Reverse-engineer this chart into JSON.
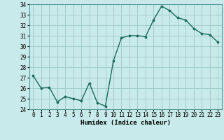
{
  "x": [
    0,
    1,
    2,
    3,
    4,
    5,
    6,
    7,
    8,
    9,
    10,
    11,
    12,
    13,
    14,
    15,
    16,
    17,
    18,
    19,
    20,
    21,
    22,
    23
  ],
  "y": [
    27.2,
    26.0,
    26.1,
    24.7,
    25.2,
    25.0,
    24.8,
    26.5,
    24.6,
    24.3,
    28.6,
    30.8,
    31.0,
    31.0,
    30.9,
    32.5,
    33.8,
    33.4,
    32.7,
    32.5,
    31.7,
    31.2,
    31.1,
    30.4
  ],
  "line_color": "#1a6b5a",
  "marker": "o",
  "marker_size": 2.2,
  "bg_color": "#c8eaea",
  "grid_color": "#a0c8c8",
  "xlabel": "Humidex (Indice chaleur)",
  "ylim": [
    24,
    34
  ],
  "xlim": [
    -0.5,
    23.5
  ],
  "yticks": [
    24,
    25,
    26,
    27,
    28,
    29,
    30,
    31,
    32,
    33,
    34
  ],
  "xtick_labels": [
    "0",
    "1",
    "2",
    "3",
    "4",
    "5",
    "6",
    "7",
    "8",
    "9",
    "10",
    "11",
    "12",
    "13",
    "14",
    "15",
    "16",
    "17",
    "18",
    "19",
    "20",
    "21",
    "22",
    "23"
  ],
  "tick_fontsize": 5.5,
  "xlabel_fontsize": 6.5,
  "linewidth": 1.0
}
